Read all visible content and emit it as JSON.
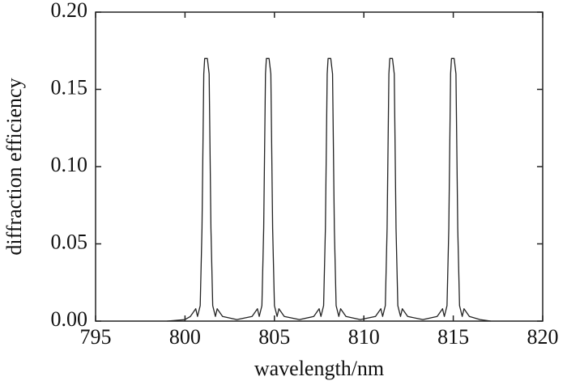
{
  "chart_data": {
    "type": "line",
    "xlabel": "wavelength/nm",
    "ylabel": "diffraction efficiency",
    "x": [
      799.0,
      800.0,
      800.3,
      800.6,
      800.7,
      800.85,
      800.95,
      801.05,
      801.1,
      801.25,
      801.35,
      801.45,
      801.55,
      801.7,
      801.8,
      802.1,
      802.9,
      803.75,
      804.05,
      804.15,
      804.3,
      804.4,
      804.5,
      804.55,
      804.7,
      804.8,
      804.9,
      805.0,
      805.15,
      805.25,
      805.55,
      806.4,
      807.2,
      807.5,
      807.6,
      807.75,
      807.85,
      807.95,
      808.0,
      808.15,
      808.25,
      808.35,
      808.45,
      808.6,
      808.7,
      809.0,
      809.8,
      810.65,
      810.95,
      811.05,
      811.2,
      811.3,
      811.4,
      811.45,
      811.6,
      811.7,
      811.8,
      811.9,
      812.05,
      812.15,
      812.45,
      813.3,
      814.1,
      814.4,
      814.5,
      814.65,
      814.75,
      814.85,
      814.9,
      815.05,
      815.15,
      815.25,
      815.35,
      815.5,
      815.6,
      815.9,
      816.5,
      817.1
    ],
    "series": [
      {
        "color": "#222222",
        "values": [
          0,
          0.001,
          0.003,
          0.008,
          0.003,
          0.01,
          0.06,
          0.16,
          0.17,
          0.17,
          0.16,
          0.06,
          0.01,
          0.003,
          0.008,
          0.003,
          0.001,
          0.003,
          0.008,
          0.003,
          0.01,
          0.06,
          0.16,
          0.17,
          0.17,
          0.16,
          0.06,
          0.01,
          0.003,
          0.008,
          0.003,
          0.001,
          0.003,
          0.008,
          0.003,
          0.01,
          0.06,
          0.16,
          0.17,
          0.17,
          0.16,
          0.06,
          0.01,
          0.003,
          0.008,
          0.003,
          0.001,
          0.003,
          0.008,
          0.003,
          0.01,
          0.06,
          0.16,
          0.17,
          0.17,
          0.16,
          0.06,
          0.01,
          0.003,
          0.008,
          0.003,
          0.001,
          0.003,
          0.008,
          0.003,
          0.01,
          0.06,
          0.16,
          0.17,
          0.17,
          0.16,
          0.06,
          0.01,
          0.003,
          0.008,
          0.003,
          0.001,
          0
        ]
      }
    ],
    "xlim": [
      795,
      820
    ],
    "xticks": [
      795,
      800,
      805,
      810,
      815,
      820
    ],
    "ylim": [
      0,
      0.2
    ],
    "yticks": [
      {
        "value": 0,
        "label": "0.00"
      },
      0.05,
      {
        "value": 0.1,
        "label": "0.10"
      },
      0.15,
      {
        "value": 0.2,
        "label": "0.20"
      }
    ]
  }
}
